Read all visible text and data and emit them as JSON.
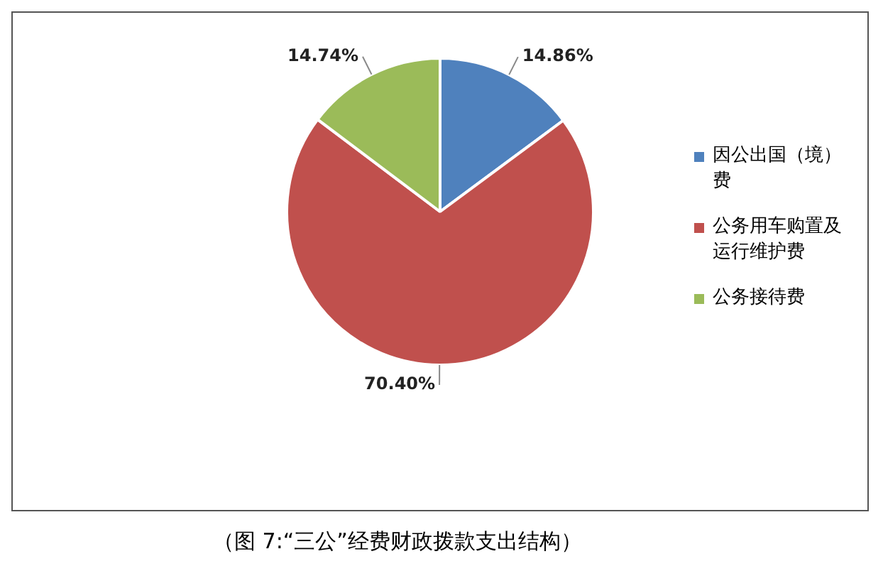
{
  "chart_data": {
    "type": "pie",
    "categories": [
      "因公出国（境）费",
      "公务用车购置及运行维护费",
      "公务接待费"
    ],
    "values": [
      14.86,
      70.4,
      14.74
    ],
    "colors": [
      "#4f81bd",
      "#c0504d",
      "#9bbb59"
    ],
    "value_labels": [
      "14.86%",
      "70.40%",
      "14.74%"
    ],
    "legend": "right",
    "annotations": [
      "（图 7:“三公”经费财政拨款支出结构）"
    ]
  }
}
